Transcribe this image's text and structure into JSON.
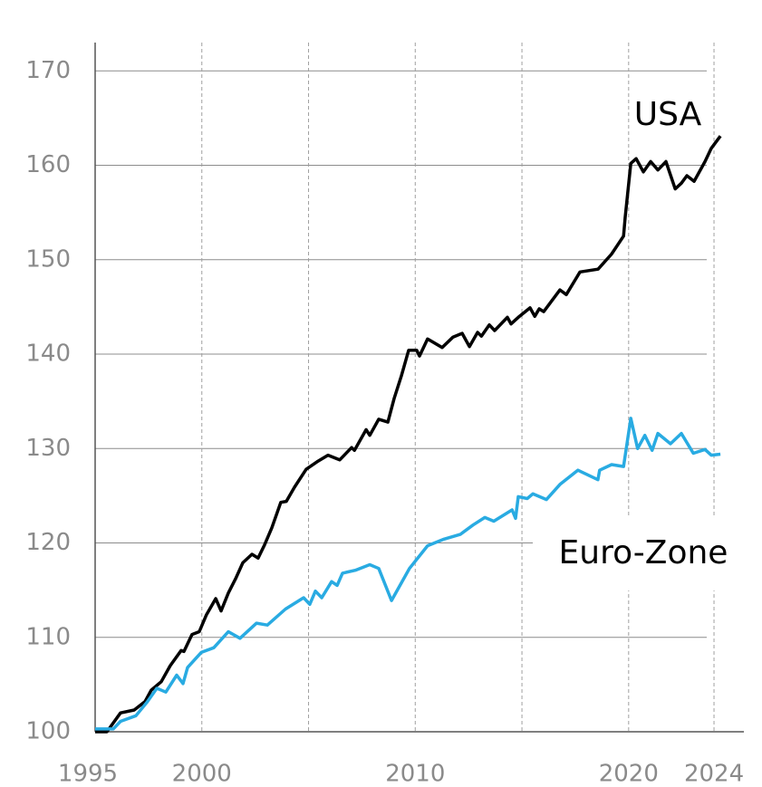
{
  "chart_data": {
    "type": "line",
    "annotations": [
      "USA",
      "Euro-Zone"
    ],
    "series": [
      {
        "name": "USA",
        "color": "#000000",
        "x": [
          1995.0,
          1995.55,
          1996.19,
          1996.83,
          1997.34,
          1997.63,
          1998.1,
          1998.52,
          1999.03,
          1999.16,
          1999.54,
          1999.88,
          2000.22,
          2000.65,
          2000.9,
          2001.24,
          2001.58,
          2001.92,
          2002.35,
          2002.64,
          2002.94,
          2003.28,
          2003.7,
          2003.96,
          2004.34,
          2004.89,
          2005.4,
          2005.91,
          2006.46,
          2007.02,
          2007.15,
          2007.7,
          2007.87,
          2008.29,
          2008.72,
          2009.01,
          2009.35,
          2009.69,
          2010.07,
          2010.2,
          2010.58,
          2011.26,
          2011.77,
          2012.2,
          2012.54,
          2012.92,
          2013.1,
          2013.47,
          2013.72,
          2014.32,
          2014.49,
          2014.83,
          2015.38,
          2015.6,
          2015.81,
          2016.02,
          2016.78,
          2017.08,
          2017.72,
          2018.57,
          2019.2,
          2019.76,
          2019.84,
          2020.1,
          2020.35,
          2020.69,
          2021.03,
          2021.37,
          2021.75,
          2022.18,
          2022.47,
          2022.73,
          2023.07,
          2023.58,
          2023.87,
          2024.3
        ],
        "values": [
          100.0,
          100.0,
          102.0,
          102.3,
          103.2,
          104.4,
          105.3,
          107.0,
          108.6,
          108.5,
          110.3,
          110.6,
          112.4,
          114.1,
          112.8,
          114.7,
          116.2,
          117.9,
          118.8,
          118.4,
          119.8,
          121.6,
          124.3,
          124.4,
          125.9,
          127.8,
          128.6,
          129.3,
          128.8,
          130.1,
          129.8,
          132.0,
          131.4,
          133.1,
          132.8,
          135.3,
          137.7,
          140.4,
          140.4,
          139.8,
          141.6,
          140.7,
          141.8,
          142.2,
          140.8,
          142.3,
          141.9,
          143.1,
          142.5,
          143.9,
          143.2,
          143.9,
          144.9,
          144.0,
          144.8,
          144.5,
          146.8,
          146.3,
          148.7,
          149.0,
          150.6,
          152.5,
          154.5,
          160.2,
          160.7,
          159.3,
          160.4,
          159.5,
          160.4,
          157.5,
          158.1,
          158.9,
          158.3,
          160.4,
          161.8,
          163.1
        ]
      },
      {
        "name": "Euro-Zone",
        "color": "#29abe2",
        "x": [
          1995.0,
          1995.85,
          1996.19,
          1996.91,
          1997.42,
          1997.89,
          1998.31,
          1998.82,
          1999.12,
          1999.33,
          1999.97,
          2000.56,
          2001.24,
          2001.79,
          2002.56,
          2003.07,
          2003.92,
          2004.77,
          2005.06,
          2005.32,
          2005.62,
          2006.08,
          2006.34,
          2006.59,
          2007.19,
          2007.87,
          2008.29,
          2008.89,
          2009.73,
          2010.58,
          2011.35,
          2012.11,
          2012.71,
          2013.26,
          2013.68,
          2014.54,
          2014.7,
          2014.83,
          2015.25,
          2015.51,
          2016.15,
          2016.78,
          2017.62,
          2018.56,
          2018.64,
          2019.2,
          2019.76,
          2020.1,
          2020.42,
          2020.76,
          2021.1,
          2021.37,
          2021.96,
          2022.47,
          2023.03,
          2023.58,
          2023.87,
          2024.3
        ],
        "values": [
          100.3,
          100.3,
          101.1,
          101.7,
          103.1,
          104.6,
          104.2,
          106.0,
          105.1,
          106.8,
          108.4,
          108.9,
          110.6,
          109.9,
          111.5,
          111.3,
          113.0,
          114.2,
          113.5,
          114.9,
          114.2,
          115.9,
          115.5,
          116.8,
          117.1,
          117.7,
          117.3,
          113.9,
          117.3,
          119.7,
          120.4,
          120.9,
          121.9,
          122.7,
          122.3,
          123.5,
          122.6,
          124.9,
          124.7,
          125.2,
          124.6,
          126.2,
          127.7,
          126.7,
          127.7,
          128.3,
          128.1,
          133.2,
          130.0,
          131.4,
          129.8,
          131.6,
          130.5,
          131.6,
          129.5,
          129.9,
          129.3,
          129.4
        ]
      }
    ],
    "xlim": [
      1995,
      2025.4
    ],
    "ylim": [
      100,
      173
    ],
    "xticks": [
      1995,
      2000,
      2010,
      2020,
      2024
    ],
    "xgrid": [
      2000,
      2005,
      2010,
      2015,
      2020,
      2024
    ],
    "yticks": [
      100,
      110,
      120,
      130,
      140,
      150,
      160,
      170
    ],
    "grid": true
  }
}
